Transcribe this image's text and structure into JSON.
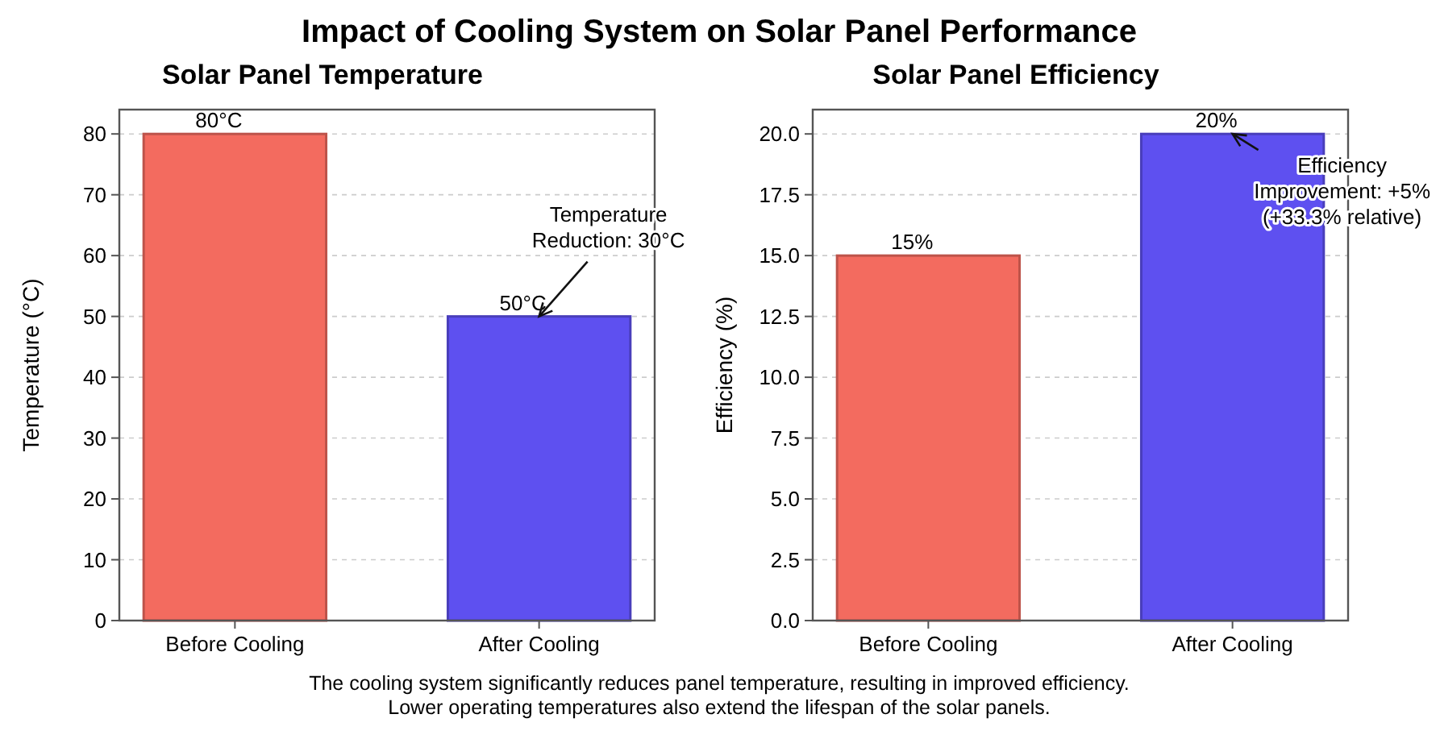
{
  "chart_data": [
    {
      "type": "bar",
      "title": "Solar Panel Temperature",
      "ylabel": "Temperature (°C)",
      "categories": [
        "Before Cooling",
        "After Cooling"
      ],
      "values": [
        80,
        50
      ],
      "colors": [
        "#f36b5f",
        "#5e50f0"
      ],
      "value_labels": [
        "80°C",
        "50°C"
      ],
      "ylim": [
        0,
        84
      ],
      "yticks": [
        0,
        10,
        20,
        30,
        40,
        50,
        60,
        70,
        80
      ],
      "grid": "y",
      "annotations": [
        "Impact of Cooling System on Solar Panel Performance",
        {
          "text": "Temperature\nReduction: 30°C",
          "x": "After Cooling",
          "y": 50
        },
        "The cooling system significantly reduces panel temperature, resulting in improved efficiency.\nLower operating temperatures also extend the lifespan of the solar panels."
      ]
    },
    {
      "type": "bar",
      "title": "Solar Panel Efficiency",
      "ylabel": "Efficiency (%)",
      "categories": [
        "Before Cooling",
        "After Cooling"
      ],
      "values": [
        15,
        20
      ],
      "colors": [
        "#f36b5f",
        "#5e50f0"
      ],
      "value_labels": [
        "15%",
        "20%"
      ],
      "ylim": [
        0,
        21
      ],
      "yticks": [
        {
          "value": 0,
          "label": "0.0"
        },
        {
          "value": 2.5,
          "label": "2.5"
        },
        {
          "value": 5,
          "label": "5.0"
        },
        {
          "value": 7.5,
          "label": "7.5"
        },
        {
          "value": 10,
          "label": "10.0"
        },
        {
          "value": 12.5,
          "label": "12.5"
        },
        {
          "value": 15,
          "label": "15.0"
        },
        {
          "value": 17.5,
          "label": "17.5"
        },
        {
          "value": 20,
          "label": "20.0"
        }
      ],
      "grid": "y",
      "annotations": [
        {
          "text": "Efficiency\nImprovement: +5%\n(+33.3% relative)",
          "x": "After Cooling",
          "y": 20
        }
      ]
    }
  ]
}
